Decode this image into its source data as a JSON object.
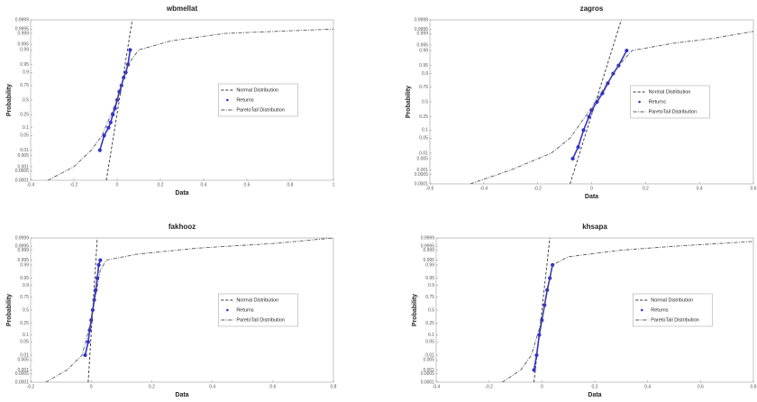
{
  "chart_data": [
    {
      "type": "line",
      "title": "wbmellat",
      "xlabel": "Data",
      "ylabel": "Probability",
      "yscale": "probit",
      "legend": "center-right",
      "xlim": [
        -0.4,
        1.0
      ],
      "xticks": [
        -0.4,
        -0.2,
        0,
        0.2,
        0.4,
        0.6,
        0.8,
        1
      ],
      "ylim": [
        0.0001,
        0.9999
      ],
      "yticks": [
        0.0001,
        0.0005,
        0.001,
        0.005,
        0.01,
        0.05,
        0.1,
        0.25,
        0.5,
        0.75,
        0.9,
        0.95,
        0.99,
        0.995,
        0.999,
        0.9995,
        0.9999
      ],
      "series": [
        {
          "name": "Normal Distribution",
          "color": "#333333",
          "style": "dashed",
          "x": [
            -0.05,
            0.07
          ],
          "values": [
            0.0001,
            0.9999
          ]
        },
        {
          "name": "Returns",
          "color": "#3333cc",
          "style": "markers",
          "x": [
            -0.08,
            -0.06,
            -0.04,
            -0.03,
            -0.02,
            -0.01,
            0,
            0.01,
            0.02,
            0.03,
            0.04,
            0.05,
            0.06
          ],
          "values": [
            0.01,
            0.05,
            0.1,
            0.15,
            0.25,
            0.35,
            0.5,
            0.65,
            0.75,
            0.85,
            0.9,
            0.95,
            0.99
          ]
        },
        {
          "name": "ParetoTail Distribution",
          "color": "#555555",
          "style": "dashdot",
          "x": [
            -0.32,
            -0.2,
            -0.12,
            -0.07,
            0,
            0.05,
            0.1,
            0.25,
            0.5,
            1.0
          ],
          "values": [
            0.0001,
            0.001,
            0.01,
            0.05,
            0.5,
            0.95,
            0.99,
            0.997,
            0.999,
            0.9995
          ]
        }
      ]
    },
    {
      "type": "line",
      "title": "zagros",
      "xlabel": "Data",
      "ylabel": "Probability",
      "yscale": "probit",
      "legend": "center-right",
      "xlim": [
        -0.6,
        0.6
      ],
      "xticks": [
        -0.6,
        -0.4,
        -0.2,
        0,
        0.2,
        0.4,
        0.6
      ],
      "ylim": [
        0.0001,
        0.9999
      ],
      "yticks": [
        0.0001,
        0.0005,
        0.001,
        0.005,
        0.01,
        0.05,
        0.1,
        0.25,
        0.5,
        0.75,
        0.9,
        0.95,
        0.99,
        0.995,
        0.999,
        0.9995,
        0.9999
      ],
      "series": [
        {
          "name": "Normal Distribution",
          "color": "#333333",
          "style": "dashed",
          "x": [
            -0.08,
            0.11
          ],
          "values": [
            0.0001,
            0.9999
          ]
        },
        {
          "name": "Returns",
          "color": "#3333cc",
          "style": "markers",
          "x": [
            -0.07,
            -0.05,
            -0.03,
            -0.01,
            0,
            0.02,
            0.04,
            0.06,
            0.08,
            0.1,
            0.13
          ],
          "values": [
            0.005,
            0.02,
            0.1,
            0.25,
            0.35,
            0.5,
            0.65,
            0.8,
            0.9,
            0.95,
            0.99
          ]
        },
        {
          "name": "ParetoTail Distribution",
          "color": "#555555",
          "style": "dashdot",
          "x": [
            -0.45,
            -0.3,
            -0.15,
            -0.08,
            0,
            0.1,
            0.15,
            0.3,
            0.45,
            0.6
          ],
          "values": [
            0.0001,
            0.001,
            0.01,
            0.05,
            0.4,
            0.95,
            0.99,
            0.996,
            0.998,
            0.9993
          ]
        }
      ]
    },
    {
      "type": "line",
      "title": "fakhooz",
      "xlabel": "Data",
      "ylabel": "Probability",
      "yscale": "probit",
      "legend": "center-right",
      "xlim": [
        -0.2,
        0.8
      ],
      "xticks": [
        -0.2,
        0,
        0.2,
        0.4,
        0.6,
        0.8
      ],
      "ylim": [
        0.0001,
        0.9999
      ],
      "yticks": [
        0.0001,
        0.0005,
        0.001,
        0.005,
        0.01,
        0.05,
        0.1,
        0.25,
        0.5,
        0.75,
        0.9,
        0.95,
        0.99,
        0.995,
        0.999,
        0.9995,
        0.9999
      ],
      "series": [
        {
          "name": "Normal Distribution",
          "color": "#333333",
          "style": "dashed",
          "x": [
            -0.01,
            0.02
          ],
          "values": [
            0.0001,
            0.9999
          ]
        },
        {
          "name": "Returns",
          "color": "#3333cc",
          "style": "markers",
          "x": [
            -0.02,
            -0.01,
            -0.005,
            0,
            0.005,
            0.01,
            0.015,
            0.02,
            0.025,
            0.03
          ],
          "values": [
            0.01,
            0.05,
            0.15,
            0.3,
            0.5,
            0.7,
            0.85,
            0.95,
            0.99,
            0.995
          ]
        },
        {
          "name": "ParetoTail Distribution",
          "color": "#555555",
          "style": "dashdot",
          "x": [
            -0.15,
            -0.08,
            -0.03,
            0,
            0.03,
            0.05,
            0.15,
            0.35,
            0.6,
            0.8
          ],
          "values": [
            0.0001,
            0.001,
            0.01,
            0.3,
            0.98,
            0.995,
            0.998,
            0.9993,
            0.9997,
            0.9999
          ]
        }
      ]
    },
    {
      "type": "line",
      "title": "khsapa",
      "xlabel": "Data",
      "ylabel": "Probability",
      "yscale": "probit",
      "legend": "center-right",
      "xlim": [
        -0.4,
        0.8
      ],
      "xticks": [
        -0.4,
        -0.2,
        0,
        0.2,
        0.4,
        0.6,
        0.8
      ],
      "ylim": [
        0.0001,
        0.9999
      ],
      "yticks": [
        0.0001,
        0.0005,
        0.001,
        0.005,
        0.01,
        0.05,
        0.1,
        0.25,
        0.5,
        0.75,
        0.9,
        0.95,
        0.99,
        0.995,
        0.999,
        0.9995,
        0.9999
      ],
      "series": [
        {
          "name": "Normal Distribution",
          "color": "#333333",
          "style": "dashed",
          "x": [
            -0.03,
            0.03
          ],
          "values": [
            0.0001,
            0.9999
          ]
        },
        {
          "name": "Returns",
          "color": "#3333cc",
          "style": "markers",
          "x": [
            -0.03,
            -0.02,
            -0.01,
            0,
            0.01,
            0.02,
            0.03,
            0.04
          ],
          "values": [
            0.001,
            0.01,
            0.1,
            0.3,
            0.6,
            0.85,
            0.95,
            0.99
          ]
        },
        {
          "name": "ParetoTail Distribution",
          "color": "#555555",
          "style": "dashdot",
          "x": [
            -0.15,
            -0.08,
            -0.04,
            0,
            0.04,
            0.1,
            0.3,
            0.5,
            0.8
          ],
          "values": [
            0.0001,
            0.001,
            0.01,
            0.3,
            0.99,
            0.997,
            0.999,
            0.9995,
            0.9998
          ]
        }
      ]
    }
  ]
}
